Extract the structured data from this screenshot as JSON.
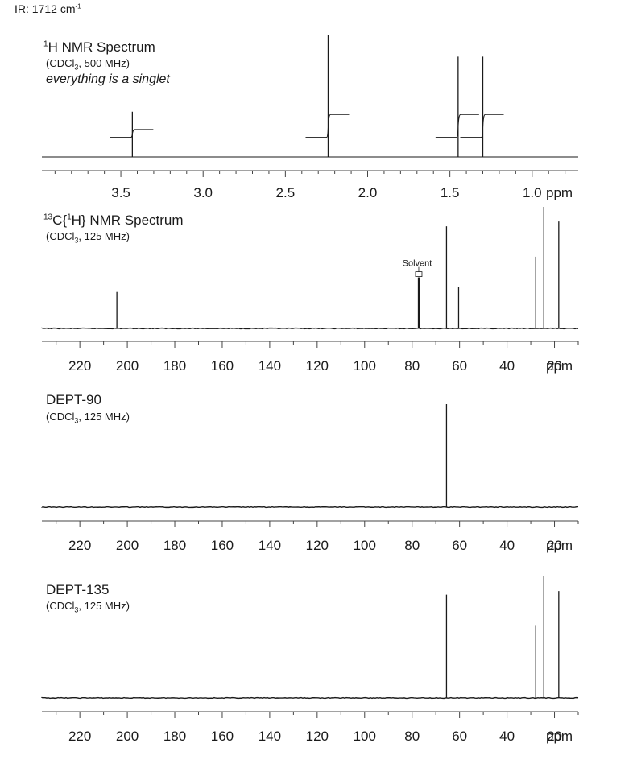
{
  "ir": {
    "label": "IR:",
    "value": "1712 cm",
    "superscript": "-1"
  },
  "spectra": [
    {
      "id": "h1",
      "title_sup": "1",
      "title_rest": "H NMR Spectrum",
      "conditions": {
        "pre": "(CDCl",
        "sub": "3",
        "post": ", 500 MHz)"
      },
      "note": "everything is a singlet"
    },
    {
      "id": "c13",
      "title_sup": "13",
      "title_mid": "C{",
      "title_sup2": "1",
      "title_rest": "H} NMR Spectrum",
      "conditions": {
        "pre": "(CDCl",
        "sub": "3",
        "post": ", 125 MHz)"
      }
    },
    {
      "id": "dept90",
      "title_rest": "DEPT-90",
      "conditions": {
        "pre": "(CDCl",
        "sub": "3",
        "post": ", 125 MHz)"
      }
    },
    {
      "id": "dept135",
      "title_rest": "DEPT-135",
      "conditions": {
        "pre": "(CDCl",
        "sub": "3",
        "post": ", 125 MHz)"
      }
    }
  ],
  "colors": {
    "trace": "#1a1a1a",
    "axis": "#444444"
  },
  "chart_data": [
    {
      "type": "line",
      "title": "1H NMR Spectrum",
      "xlabel": "ppm",
      "xlim": [
        3.98,
        0.72
      ],
      "x_reversed": true,
      "tick_labels": [
        "3.5",
        "3.0",
        "2.5",
        "2.0",
        "1.5",
        "1.0"
      ],
      "peaks": [
        {
          "ppm": 3.43,
          "height": 0.37,
          "multiplicity": "singlet"
        },
        {
          "ppm": 2.24,
          "height": 1.0,
          "multiplicity": "singlet"
        },
        {
          "ppm": 1.45,
          "height": 0.82,
          "multiplicity": "singlet"
        },
        {
          "ppm": 1.3,
          "height": 0.82,
          "multiplicity": "singlet"
        }
      ],
      "integration_steps": [
        {
          "ppm": 3.43,
          "rise": 0.19
        },
        {
          "ppm": 2.24,
          "rise": 0.55
        },
        {
          "ppm": 1.45,
          "rise": 0.55
        },
        {
          "ppm": 1.3,
          "rise": 0.55
        }
      ]
    },
    {
      "type": "line",
      "title": "13C{1H} NMR Spectrum",
      "xlabel": "ppm",
      "xlim": [
        236,
        10
      ],
      "x_reversed": true,
      "tick_labels": [
        "220",
        "200",
        "180",
        "160",
        "140",
        "120",
        "100",
        "80",
        "60",
        "40",
        "20"
      ],
      "peaks": [
        {
          "ppm": 204.4,
          "height": 0.3
        },
        {
          "ppm": 77.2,
          "height": 0.42,
          "label": "Solvent"
        },
        {
          "ppm": 65.5,
          "height": 0.84
        },
        {
          "ppm": 60.4,
          "height": 0.34
        },
        {
          "ppm": 27.9,
          "height": 0.59
        },
        {
          "ppm": 24.5,
          "height": 1.0
        },
        {
          "ppm": 18.2,
          "height": 0.88
        }
      ]
    },
    {
      "type": "line",
      "title": "DEPT-90",
      "xlabel": "ppm",
      "xlim": [
        236,
        10
      ],
      "x_reversed": true,
      "tick_labels": [
        "220",
        "200",
        "180",
        "160",
        "140",
        "120",
        "100",
        "80",
        "60",
        "40",
        "20"
      ],
      "peaks": [
        {
          "ppm": 65.5,
          "height": 1.0
        }
      ]
    },
    {
      "type": "line",
      "title": "DEPT-135",
      "xlabel": "ppm",
      "xlim": [
        236,
        10
      ],
      "x_reversed": true,
      "tick_labels": [
        "220",
        "200",
        "180",
        "160",
        "140",
        "120",
        "100",
        "80",
        "60",
        "40",
        "20"
      ],
      "peaks": [
        {
          "ppm": 65.5,
          "height": 0.85
        },
        {
          "ppm": 27.9,
          "height": 0.6
        },
        {
          "ppm": 24.5,
          "height": 1.0
        },
        {
          "ppm": 18.2,
          "height": 0.88
        }
      ]
    }
  ]
}
